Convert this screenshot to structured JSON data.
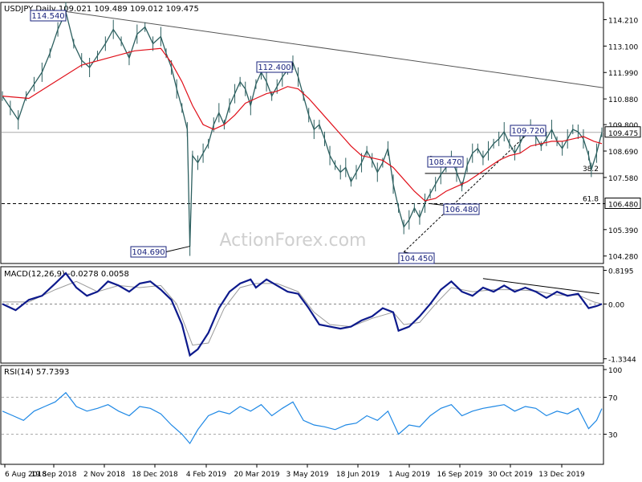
{
  "chart_data": {
    "type": "line",
    "symbol_title": "USDJPY Daily",
    "ohlc_header": "109.021 109.489 109.012 109.475",
    "watermark": "ActionForex.com",
    "dates": [
      "6 Aug 2018",
      "19 Sep 2018",
      "2 Nov 2018",
      "18 Dec 2018",
      "4 Feb 2019",
      "20 Mar 2019",
      "3 May 2019",
      "18 Jun 2019",
      "1 Aug 2019",
      "16 Sep 2019",
      "30 Oct 2019",
      "13 Dec 2019"
    ],
    "price_panel": {
      "ylim": [
        104.0,
        114.9
      ],
      "y_ticks": [
        "114.210",
        "113.100",
        "111.990",
        "110.880",
        "109.800",
        "108.690",
        "107.580",
        "106.480",
        "105.390",
        "104.280"
      ],
      "current_price": "109.475",
      "close_path": [
        [
          0,
          111.0
        ],
        [
          3,
          110.5
        ],
        [
          6,
          110.0
        ],
        [
          9,
          111.0
        ],
        [
          12,
          111.5
        ],
        [
          15,
          112.0
        ],
        [
          18,
          112.8
        ],
        [
          21,
          113.8
        ],
        [
          24,
          114.54
        ],
        [
          27,
          113.2
        ],
        [
          30,
          112.5
        ],
        [
          33,
          112.2
        ],
        [
          36,
          112.7
        ],
        [
          39,
          113.2
        ],
        [
          42,
          113.8
        ],
        [
          45,
          113.3
        ],
        [
          48,
          112.6
        ],
        [
          51,
          113.6
        ],
        [
          54,
          113.9
        ],
        [
          57,
          113.2
        ],
        [
          60,
          113.5
        ],
        [
          62,
          112.8
        ],
        [
          64,
          112.2
        ],
        [
          66,
          111.3
        ],
        [
          68,
          110.5
        ],
        [
          70,
          109.6
        ],
        [
          71,
          104.69
        ],
        [
          72,
          108.5
        ],
        [
          74,
          108.2
        ],
        [
          76,
          108.6
        ],
        [
          78,
          109.0
        ],
        [
          80,
          109.8
        ],
        [
          82,
          110.3
        ],
        [
          84,
          109.8
        ],
        [
          86,
          110.6
        ],
        [
          88,
          111.1
        ],
        [
          90,
          111.6
        ],
        [
          92,
          111.3
        ],
        [
          94,
          110.6
        ],
        [
          96,
          111.5
        ],
        [
          98,
          112.0
        ],
        [
          100,
          111.6
        ],
        [
          102,
          111.0
        ],
        [
          104,
          111.4
        ],
        [
          106,
          111.8
        ],
        [
          108,
          112.1
        ],
        [
          110,
          112.4
        ],
        [
          112,
          111.8
        ],
        [
          114,
          111.0
        ],
        [
          116,
          110.2
        ],
        [
          118,
          109.6
        ],
        [
          120,
          109.8
        ],
        [
          122,
          109.2
        ],
        [
          124,
          108.5
        ],
        [
          126,
          108.1
        ],
        [
          128,
          107.8
        ],
        [
          130,
          108.0
        ],
        [
          132,
          107.4
        ],
        [
          134,
          107.8
        ],
        [
          136,
          108.2
        ],
        [
          138,
          108.7
        ],
        [
          140,
          108.3
        ],
        [
          142,
          107.8
        ],
        [
          144,
          108.2
        ],
        [
          146,
          108.8
        ],
        [
          148,
          107.3
        ],
        [
          150,
          106.3
        ],
        [
          152,
          105.5
        ],
        [
          154,
          105.8
        ],
        [
          156,
          106.3
        ],
        [
          158,
          105.9
        ],
        [
          160,
          106.5
        ],
        [
          162,
          106.9
        ],
        [
          164,
          107.3
        ],
        [
          166,
          107.7
        ],
        [
          168,
          108.0
        ],
        [
          170,
          108.4
        ],
        [
          172,
          107.8
        ],
        [
          174,
          107.2
        ],
        [
          176,
          108.1
        ],
        [
          178,
          108.6
        ],
        [
          180,
          108.8
        ],
        [
          182,
          108.4
        ],
        [
          184,
          108.7
        ],
        [
          186,
          109.0
        ],
        [
          188,
          109.2
        ],
        [
          190,
          109.5
        ],
        [
          192,
          109.0
        ],
        [
          194,
          108.6
        ],
        [
          196,
          109.0
        ],
        [
          198,
          109.5
        ],
        [
          200,
          109.72
        ],
        [
          202,
          109.3
        ],
        [
          204,
          108.9
        ],
        [
          206,
          109.2
        ],
        [
          208,
          109.6
        ],
        [
          210,
          109.1
        ],
        [
          212,
          108.8
        ],
        [
          214,
          109.2
        ],
        [
          216,
          109.6
        ],
        [
          218,
          109.5
        ],
        [
          220,
          109.2
        ],
        [
          222,
          108.5
        ],
        [
          223,
          107.9
        ],
        [
          225,
          108.6
        ],
        [
          227,
          109.475
        ]
      ],
      "sma_path": [
        [
          0,
          111.0
        ],
        [
          10,
          110.9
        ],
        [
          20,
          111.6
        ],
        [
          30,
          112.3
        ],
        [
          40,
          112.6
        ],
        [
          50,
          112.9
        ],
        [
          60,
          113.0
        ],
        [
          64,
          112.4
        ],
        [
          68,
          111.6
        ],
        [
          72,
          110.6
        ],
        [
          76,
          109.8
        ],
        [
          80,
          109.6
        ],
        [
          84,
          109.8
        ],
        [
          88,
          110.2
        ],
        [
          92,
          110.7
        ],
        [
          96,
          110.9
        ],
        [
          100,
          111.1
        ],
        [
          104,
          111.2
        ],
        [
          108,
          111.4
        ],
        [
          112,
          111.3
        ],
        [
          116,
          110.9
        ],
        [
          120,
          110.4
        ],
        [
          124,
          109.9
        ],
        [
          128,
          109.4
        ],
        [
          132,
          108.9
        ],
        [
          136,
          108.5
        ],
        [
          140,
          108.4
        ],
        [
          144,
          108.3
        ],
        [
          148,
          108.0
        ],
        [
          152,
          107.5
        ],
        [
          156,
          107.0
        ],
        [
          160,
          106.6
        ],
        [
          164,
          106.7
        ],
        [
          168,
          107.0
        ],
        [
          172,
          107.2
        ],
        [
          176,
          107.4
        ],
        [
          180,
          107.7
        ],
        [
          184,
          108.0
        ],
        [
          188,
          108.3
        ],
        [
          192,
          108.5
        ],
        [
          196,
          108.6
        ],
        [
          200,
          108.9
        ],
        [
          204,
          109.0
        ],
        [
          208,
          109.1
        ],
        [
          212,
          109.1
        ],
        [
          216,
          109.2
        ],
        [
          220,
          109.3
        ],
        [
          224,
          109.1
        ],
        [
          227,
          109.0
        ]
      ],
      "annotations": [
        {
          "label": "114.540",
          "i": 24,
          "value": 114.54
        },
        {
          "label": "104.690",
          "i": 71,
          "value": 104.69
        },
        {
          "label": "112.400",
          "i": 110,
          "value": 112.4
        },
        {
          "label": "104.450",
          "i": 152,
          "value": 104.45
        },
        {
          "label": "108.470",
          "i": 162,
          "value": 108.47
        },
        {
          "label": "106.480",
          "i": 162,
          "value": 106.48
        },
        {
          "label": "109.720",
          "i": 200,
          "value": 109.72
        }
      ],
      "fib_levels": [
        {
          "label": "38.2",
          "value": 107.75
        },
        {
          "label": "61.8",
          "value": 106.48
        }
      ],
      "level_tag": "106.480"
    },
    "macd_panel": {
      "title": "MACD(12,26,9) -0.0278 0.0058",
      "ylim": [
        -1.4,
        0.85
      ],
      "y_ticks": [
        "0.8195",
        "0.00",
        "-1.3344"
      ],
      "macd_path": [
        [
          0,
          0.0
        ],
        [
          5,
          -0.15
        ],
        [
          10,
          0.1
        ],
        [
          15,
          0.2
        ],
        [
          20,
          0.5
        ],
        [
          24,
          0.75
        ],
        [
          28,
          0.4
        ],
        [
          32,
          0.2
        ],
        [
          36,
          0.3
        ],
        [
          40,
          0.55
        ],
        [
          44,
          0.45
        ],
        [
          48,
          0.3
        ],
        [
          52,
          0.5
        ],
        [
          56,
          0.55
        ],
        [
          60,
          0.35
        ],
        [
          64,
          0.1
        ],
        [
          68,
          -0.5
        ],
        [
          71,
          -1.25
        ],
        [
          74,
          -1.1
        ],
        [
          78,
          -0.7
        ],
        [
          82,
          -0.1
        ],
        [
          86,
          0.3
        ],
        [
          90,
          0.5
        ],
        [
          94,
          0.6
        ],
        [
          96,
          0.4
        ],
        [
          100,
          0.6
        ],
        [
          104,
          0.45
        ],
        [
          108,
          0.3
        ],
        [
          112,
          0.25
        ],
        [
          116,
          -0.1
        ],
        [
          120,
          -0.5
        ],
        [
          124,
          -0.55
        ],
        [
          128,
          -0.6
        ],
        [
          132,
          -0.55
        ],
        [
          136,
          -0.4
        ],
        [
          140,
          -0.3
        ],
        [
          144,
          -0.1
        ],
        [
          148,
          -0.2
        ],
        [
          150,
          -0.65
        ],
        [
          154,
          -0.55
        ],
        [
          158,
          -0.3
        ],
        [
          162,
          0.0
        ],
        [
          166,
          0.35
        ],
        [
          170,
          0.55
        ],
        [
          174,
          0.3
        ],
        [
          178,
          0.2
        ],
        [
          182,
          0.4
        ],
        [
          186,
          0.3
        ],
        [
          190,
          0.45
        ],
        [
          194,
          0.3
        ],
        [
          198,
          0.4
        ],
        [
          202,
          0.3
        ],
        [
          206,
          0.15
        ],
        [
          210,
          0.3
        ],
        [
          214,
          0.2
        ],
        [
          218,
          0.25
        ],
        [
          222,
          -0.1
        ],
        [
          225,
          -0.05
        ],
        [
          227,
          0.0
        ]
      ],
      "signal_path": [
        [
          0,
          0.05
        ],
        [
          10,
          0.05
        ],
        [
          20,
          0.35
        ],
        [
          28,
          0.55
        ],
        [
          36,
          0.3
        ],
        [
          44,
          0.45
        ],
        [
          52,
          0.4
        ],
        [
          60,
          0.45
        ],
        [
          66,
          0.0
        ],
        [
          72,
          -1.0
        ],
        [
          78,
          -0.95
        ],
        [
          84,
          -0.1
        ],
        [
          90,
          0.4
        ],
        [
          96,
          0.5
        ],
        [
          104,
          0.5
        ],
        [
          112,
          0.3
        ],
        [
          118,
          -0.2
        ],
        [
          124,
          -0.5
        ],
        [
          132,
          -0.55
        ],
        [
          140,
          -0.35
        ],
        [
          148,
          -0.2
        ],
        [
          152,
          -0.5
        ],
        [
          158,
          -0.45
        ],
        [
          164,
          0.0
        ],
        [
          170,
          0.4
        ],
        [
          178,
          0.3
        ],
        [
          186,
          0.35
        ],
        [
          194,
          0.35
        ],
        [
          202,
          0.32
        ],
        [
          210,
          0.22
        ],
        [
          218,
          0.22
        ],
        [
          224,
          0.05
        ],
        [
          227,
          0.0
        ]
      ]
    },
    "rsi_panel": {
      "title": "RSI(14) 57.7393",
      "ylim": [
        0,
        100
      ],
      "y_ticks": [
        "100",
        "70",
        "30"
      ],
      "rsi_path": [
        [
          0,
          55
        ],
        [
          4,
          50
        ],
        [
          8,
          45
        ],
        [
          12,
          55
        ],
        [
          16,
          60
        ],
        [
          20,
          65
        ],
        [
          24,
          75
        ],
        [
          28,
          60
        ],
        [
          32,
          55
        ],
        [
          36,
          58
        ],
        [
          40,
          62
        ],
        [
          44,
          55
        ],
        [
          48,
          50
        ],
        [
          52,
          60
        ],
        [
          56,
          58
        ],
        [
          60,
          52
        ],
        [
          64,
          40
        ],
        [
          68,
          30
        ],
        [
          71,
          20
        ],
        [
          74,
          35
        ],
        [
          78,
          50
        ],
        [
          82,
          55
        ],
        [
          86,
          52
        ],
        [
          90,
          60
        ],
        [
          94,
          55
        ],
        [
          98,
          62
        ],
        [
          102,
          50
        ],
        [
          106,
          58
        ],
        [
          110,
          65
        ],
        [
          114,
          45
        ],
        [
          118,
          40
        ],
        [
          122,
          38
        ],
        [
          126,
          35
        ],
        [
          130,
          40
        ],
        [
          134,
          42
        ],
        [
          138,
          50
        ],
        [
          142,
          45
        ],
        [
          146,
          55
        ],
        [
          150,
          30
        ],
        [
          154,
          40
        ],
        [
          158,
          38
        ],
        [
          162,
          50
        ],
        [
          166,
          58
        ],
        [
          170,
          62
        ],
        [
          174,
          50
        ],
        [
          178,
          55
        ],
        [
          182,
          58
        ],
        [
          186,
          60
        ],
        [
          190,
          62
        ],
        [
          194,
          55
        ],
        [
          198,
          60
        ],
        [
          202,
          58
        ],
        [
          206,
          50
        ],
        [
          210,
          55
        ],
        [
          214,
          52
        ],
        [
          218,
          58
        ],
        [
          222,
          36
        ],
        [
          225,
          45
        ],
        [
          227,
          57.7
        ]
      ]
    }
  }
}
